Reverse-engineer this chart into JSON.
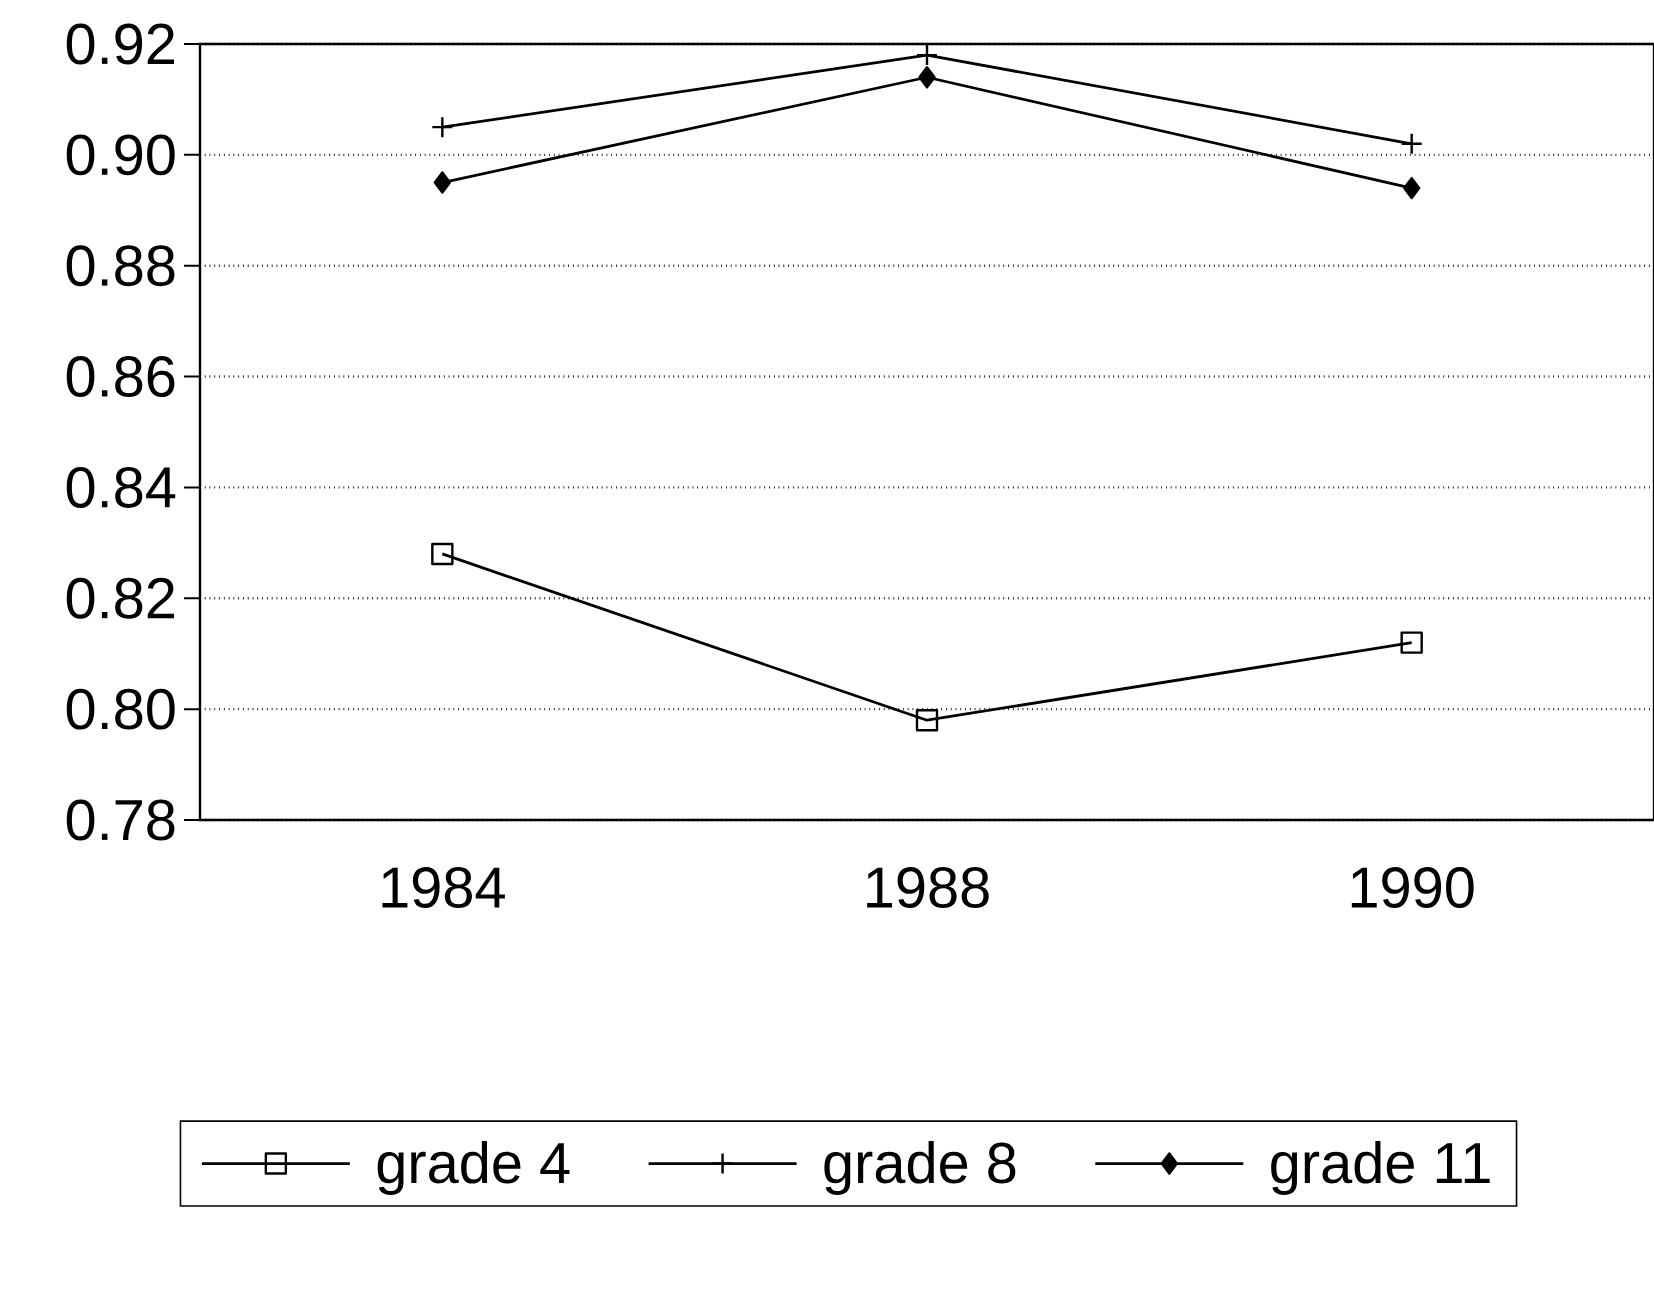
{
  "chart_data": {
    "type": "line",
    "categories": [
      "1984",
      "1988",
      "1990"
    ],
    "series": [
      {
        "name": "grade 4",
        "color": "#000000",
        "marker": "square",
        "values": [
          0.828,
          0.798,
          0.812
        ]
      },
      {
        "name": "grade 8",
        "color": "#000000",
        "marker": "cross",
        "values": [
          0.905,
          0.918,
          0.902
        ]
      },
      {
        "name": "grade 11",
        "color": "#000000",
        "marker": "diamond",
        "values": [
          0.895,
          0.914,
          0.894
        ]
      }
    ],
    "ylim": [
      0.78,
      0.92
    ],
    "yticks": [
      {
        "value": 0.78,
        "label": "0.78"
      },
      {
        "value": 0.8,
        "label": "0.80"
      },
      {
        "value": 0.82,
        "label": "0.82"
      },
      {
        "value": 0.84,
        "label": "0.84"
      },
      {
        "value": 0.86,
        "label": "0.86"
      },
      {
        "value": 0.88,
        "label": "0.88"
      },
      {
        "value": 0.9,
        "label": "0.90"
      },
      {
        "value": 0.92,
        "label": "0.92"
      }
    ],
    "grid": "y",
    "legend": "bottom",
    "line_style": "solid"
  }
}
